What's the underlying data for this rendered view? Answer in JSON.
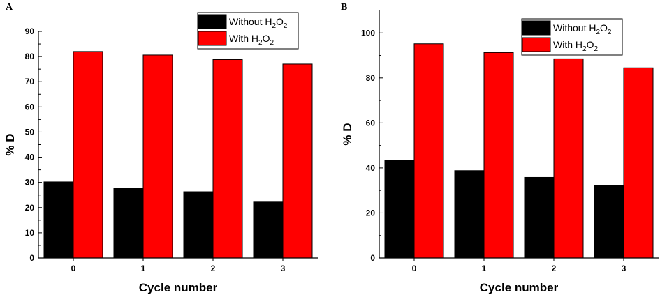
{
  "chart_data": [
    {
      "type": "bar",
      "panel_label": "A",
      "categories": [
        "0",
        "1",
        "2",
        "3"
      ],
      "series": [
        {
          "name": "Without H2O2",
          "legend_parts": [
            "Without H",
            "2",
            "O",
            "2"
          ],
          "color": "#000000",
          "values": [
            30.2,
            27.6,
            26.3,
            22.2
          ]
        },
        {
          "name": "With H2O2",
          "legend_parts": [
            "With H",
            "2",
            "O",
            "2"
          ],
          "color": "#ff0000",
          "values": [
            82.0,
            80.6,
            78.8,
            77.0
          ]
        }
      ],
      "xlabel": "Cycle number",
      "ylabel": "% D",
      "ylim": [
        0,
        90
      ],
      "yticks": [
        0,
        10,
        20,
        30,
        40,
        50,
        60,
        70,
        80,
        90
      ],
      "legend_position": "top-right",
      "grid": false
    },
    {
      "type": "bar",
      "panel_label": "B",
      "categories": [
        "0",
        "1",
        "2",
        "3"
      ],
      "series": [
        {
          "name": "Without H2O2",
          "legend_parts": [
            "Without H",
            "2",
            "O",
            "2"
          ],
          "color": "#000000",
          "values": [
            43.5,
            38.8,
            35.8,
            32.2
          ]
        },
        {
          "name": "With H2O2",
          "legend_parts": [
            "With H",
            "2",
            "O",
            "2"
          ],
          "color": "#ff0000",
          "values": [
            95.2,
            91.3,
            88.5,
            84.5
          ]
        }
      ],
      "xlabel": "Cycle number",
      "ylabel": "% D",
      "ylim": [
        0,
        110
      ],
      "yticks": [
        0,
        20,
        40,
        60,
        80,
        100
      ],
      "legend_position": "top-right",
      "grid": false
    }
  ]
}
